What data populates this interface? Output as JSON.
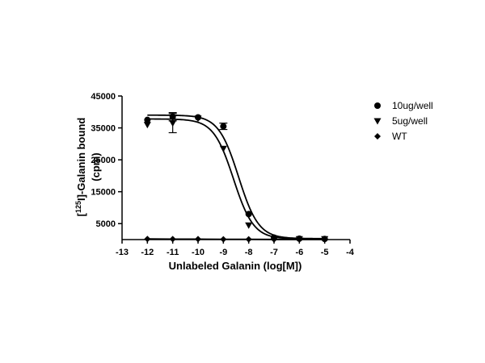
{
  "chart_data": {
    "type": "scatter",
    "xlabel": "Unlabeled Galanin (log[M])",
    "ylabel_prefix": "[",
    "ylabel_superscript": "125",
    "ylabel_suffix": "I]-Galanin bound",
    "ylabel_line2": "(cpm)",
    "xlim": [
      -13,
      -4
    ],
    "ylim": [
      0,
      45000
    ],
    "xticks": [
      -13,
      -12,
      -11,
      -10,
      -9,
      -8,
      -7,
      -6,
      -5,
      -4
    ],
    "xtick_labels": [
      "-13",
      "-12",
      "-11",
      "-10",
      "-9",
      "-8",
      "-7",
      "-6",
      "-5",
      "-4"
    ],
    "yticks": [
      5000,
      15000,
      25000,
      35000,
      45000
    ],
    "ytick_labels": [
      "5000",
      "15000",
      "25000",
      "35000",
      "45000"
    ],
    "legend_position": "top-right",
    "grid": false,
    "series": [
      {
        "name": "10ug/well",
        "marker": "circle",
        "points": [
          {
            "x": -12,
            "y": 37500,
            "err": 0
          },
          {
            "x": -11,
            "y": 38500,
            "err": 1300
          },
          {
            "x": -10,
            "y": 38300,
            "err": 0
          },
          {
            "x": -9,
            "y": 35500,
            "err": 1000
          },
          {
            "x": -8,
            "y": 8000,
            "err": 0
          },
          {
            "x": -7,
            "y": 600,
            "err": 0
          },
          {
            "x": -6,
            "y": 300,
            "err": 0
          },
          {
            "x": -5,
            "y": 200,
            "err": 0
          }
        ],
        "fit": {
          "top": 39000,
          "bottom": 300,
          "logIC50": -8.4,
          "hill": 1.1
        }
      },
      {
        "name": "5ug/well",
        "marker": "triangle-down",
        "points": [
          {
            "x": -12,
            "y": 36000,
            "err": 0
          },
          {
            "x": -11,
            "y": 36500,
            "err": 3000
          },
          {
            "x": -10,
            "y": 38000,
            "err": 0
          },
          {
            "x": -9,
            "y": 28500,
            "err": 0
          },
          {
            "x": -8,
            "y": 4500,
            "err": 0
          },
          {
            "x": -7,
            "y": 300,
            "err": 0
          },
          {
            "x": -6,
            "y": 200,
            "err": 0
          },
          {
            "x": -5,
            "y": 200,
            "err": 0
          }
        ],
        "fit": {
          "top": 37800,
          "bottom": 200,
          "logIC50": -8.6,
          "hill": 1.1
        }
      },
      {
        "name": "WT",
        "marker": "diamond",
        "points": [
          {
            "x": -12,
            "y": 200,
            "err": 0
          },
          {
            "x": -11,
            "y": 150,
            "err": 0
          },
          {
            "x": -10,
            "y": 150,
            "err": 0
          },
          {
            "x": -9,
            "y": 100,
            "err": 0
          },
          {
            "x": -8,
            "y": 100,
            "err": 0
          },
          {
            "x": -7,
            "y": 50,
            "err": 0
          },
          {
            "x": -6,
            "y": 50,
            "err": 0
          },
          {
            "x": -5,
            "y": 50,
            "err": 0
          }
        ],
        "fit": null
      }
    ]
  }
}
